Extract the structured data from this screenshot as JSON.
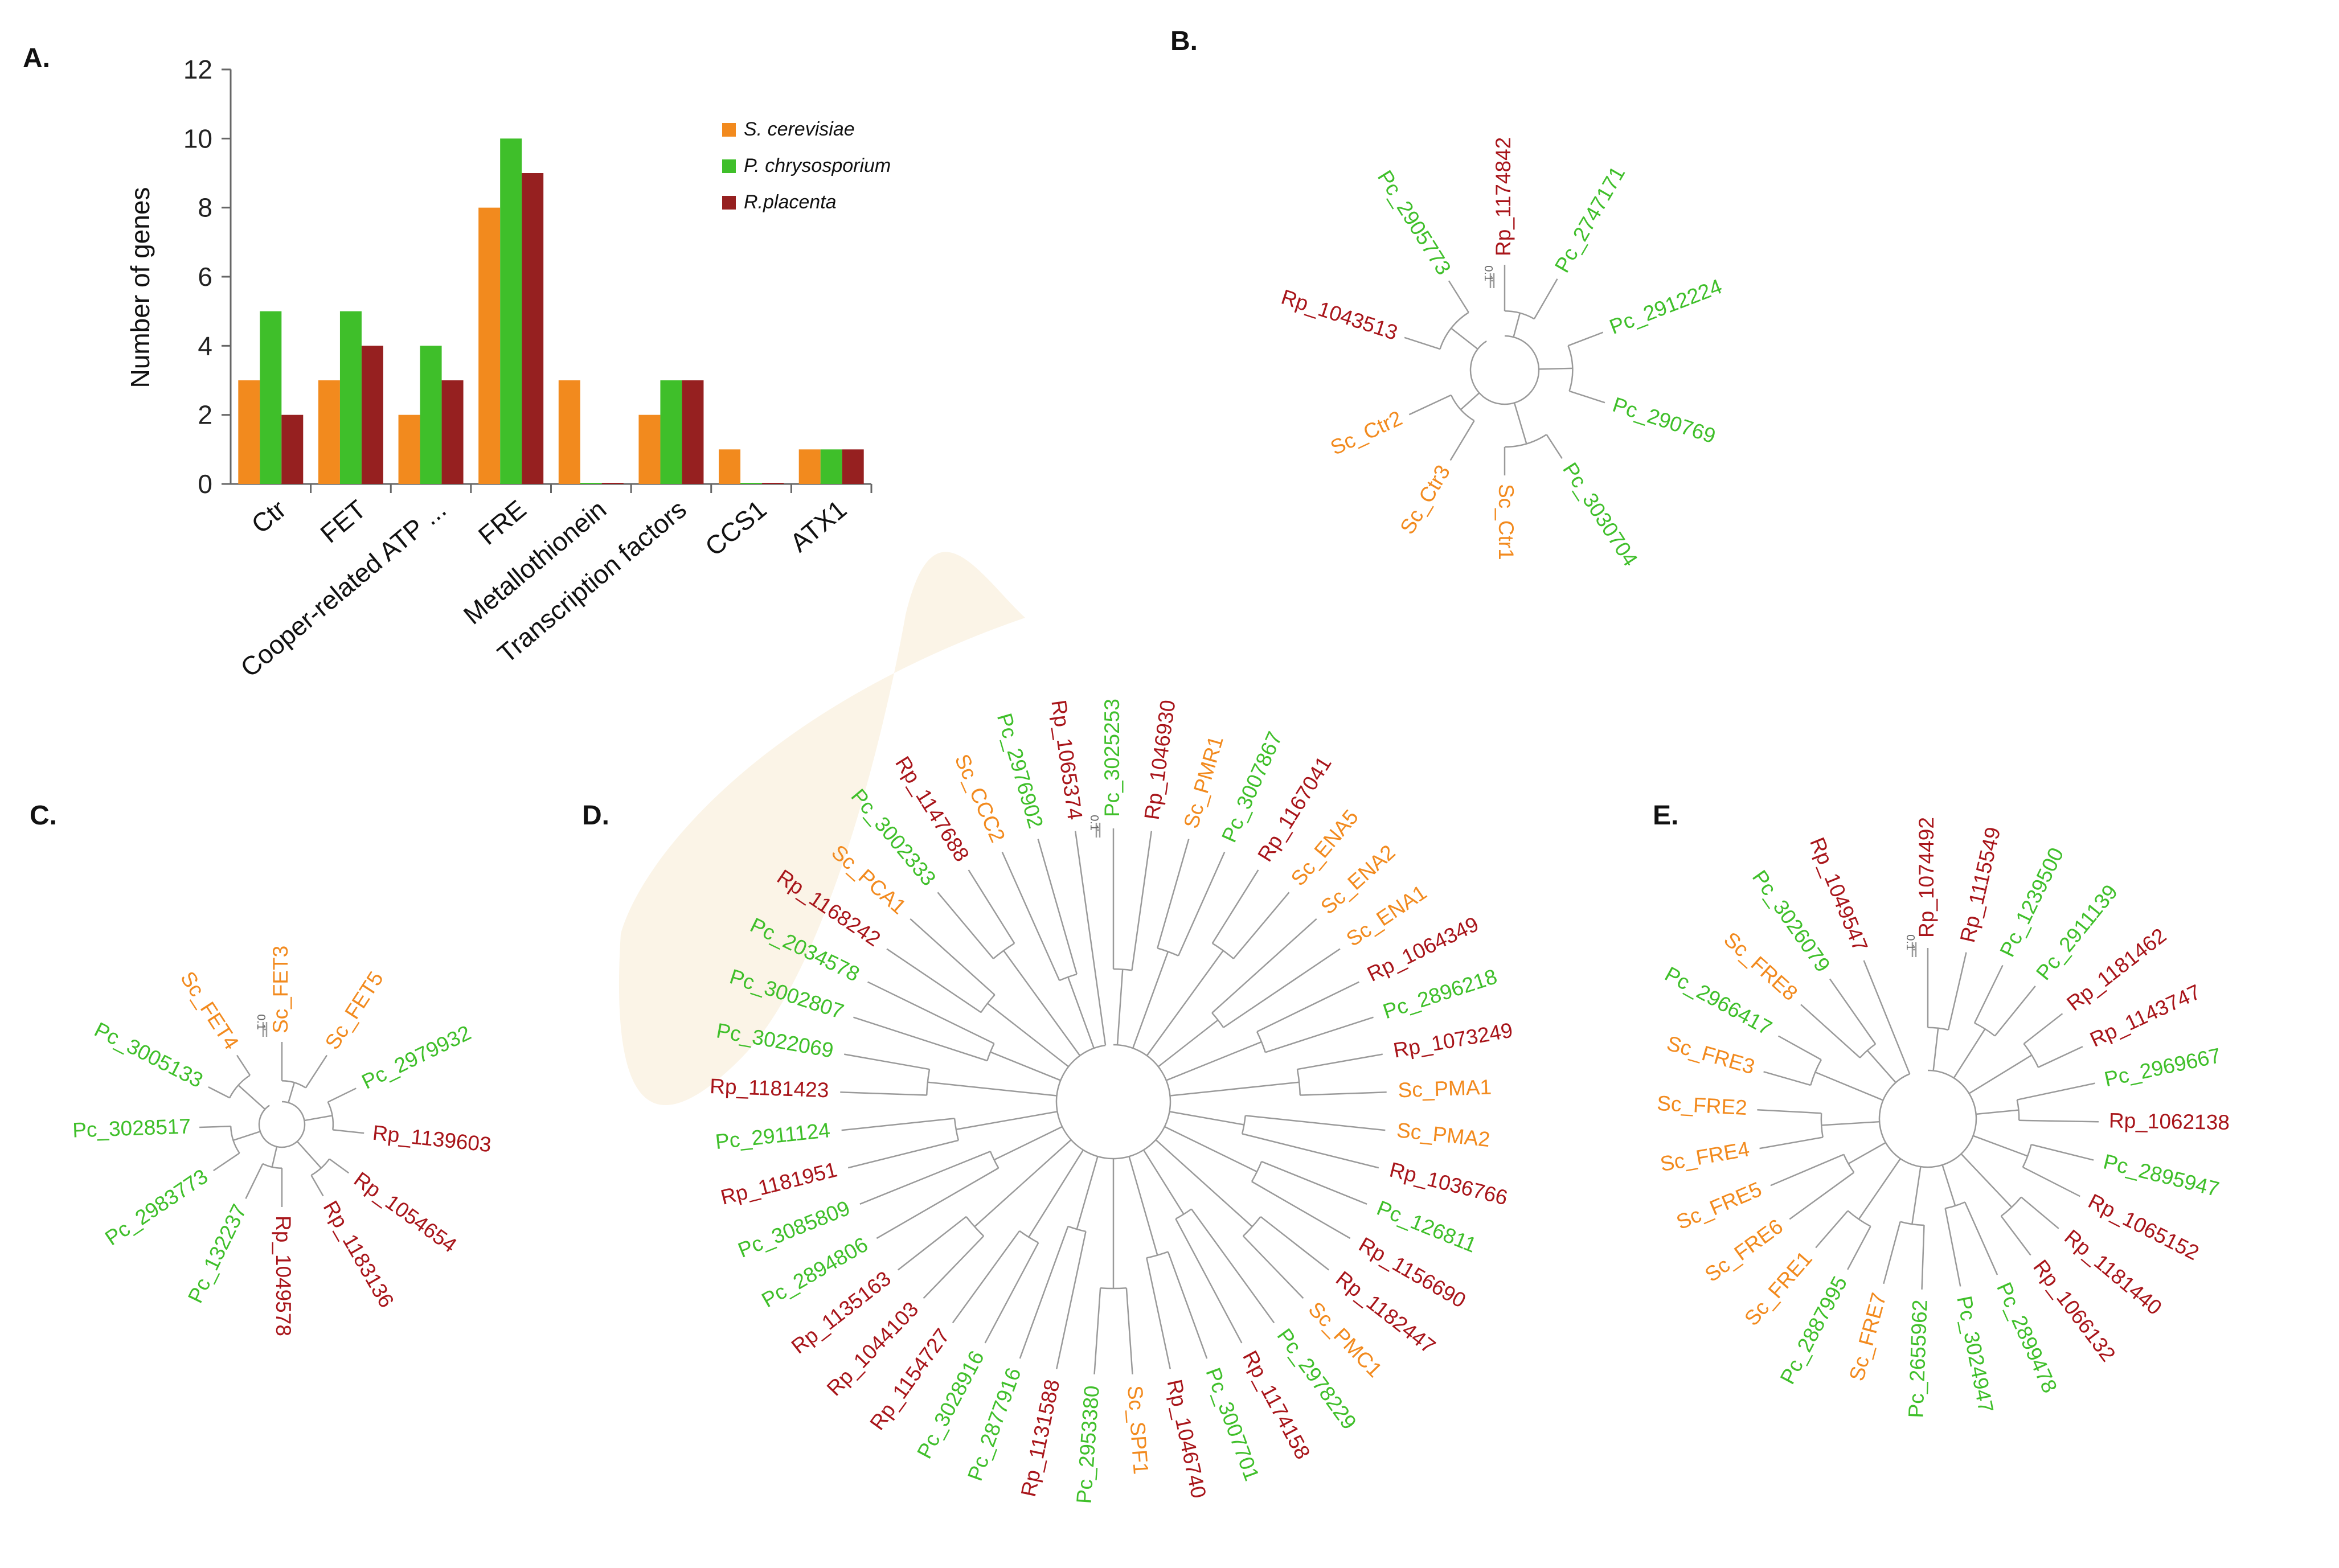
{
  "colors": {
    "sc": "#f28a1e",
    "pc": "#3fbf2a",
    "rp": "#a8151a",
    "shade": "#fbf4e7",
    "axis": "#666666"
  },
  "panels": {
    "a": "A.",
    "b": "B.",
    "c": "C.",
    "d": "D.",
    "e": "E."
  },
  "chart_data": {
    "type": "bar",
    "categories": [
      "Ctr",
      "FET",
      "Cooper-related ATP ...",
      "FRE",
      "Metallothionein",
      "Transcription factors",
      "CCS1",
      "ATX1"
    ],
    "series": [
      {
        "name": "S. cerevisiae",
        "color": "#f28a1e",
        "values": [
          3,
          3,
          2,
          8,
          3,
          2,
          1,
          1
        ]
      },
      {
        "name": "P. chrysosporium",
        "color": "#3fbf2a",
        "values": [
          5,
          5,
          4,
          10,
          0,
          3,
          0,
          1
        ]
      },
      {
        "name": "R.placenta",
        "color": "#962020",
        "values": [
          2,
          4,
          3,
          9,
          0,
          3,
          0,
          1
        ]
      }
    ],
    "ylabel": "Number of genes",
    "xlabel": "",
    "ylim": [
      0,
      12
    ],
    "yticks": [
      0,
      2,
      4,
      6,
      8,
      10,
      12
    ],
    "legend": "top-right"
  },
  "trees": {
    "b": {
      "scale_label": "0.1",
      "leaves": [
        {
          "label": "Rp_1174842",
          "sp": "rp",
          "angle": -90
        },
        {
          "label": "Pc_2747171",
          "sp": "pc",
          "angle": -60
        },
        {
          "label": "Pc_2912224",
          "sp": "pc",
          "angle": -21
        },
        {
          "label": "Pc_290769",
          "sp": "pc",
          "angle": 18
        },
        {
          "label": "Pc_3030704",
          "sp": "pc",
          "angle": 57
        },
        {
          "label": "Sc_Ctr1",
          "sp": "sc",
          "angle": 90
        },
        {
          "label": "Sc_Ctr3",
          "sp": "sc",
          "angle": 121
        },
        {
          "label": "Sc_Ctr2",
          "sp": "sc",
          "angle": 155
        },
        {
          "label": "Rp_1043513",
          "sp": "rp",
          "angle": 198
        },
        {
          "label": "Pc_2905773",
          "sp": "pc",
          "angle": 238
        }
      ]
    },
    "c": {
      "scale_label": "0.1",
      "leaves": [
        {
          "label": "Sc_FET3",
          "sp": "sc",
          "angle": -90
        },
        {
          "label": "Sc_FET5",
          "sp": "sc",
          "angle": -57
        },
        {
          "label": "Pc_2979932",
          "sp": "pc",
          "angle": -26
        },
        {
          "label": "Rp_1139603",
          "sp": "rp",
          "angle": 6
        },
        {
          "label": "Rp_1054654",
          "sp": "rp",
          "angle": 36
        },
        {
          "label": "Rp_1183136",
          "sp": "rp",
          "angle": 60
        },
        {
          "label": "Rp_1049578",
          "sp": "rp",
          "angle": 90
        },
        {
          "label": "Pc_132237",
          "sp": "pc",
          "angle": 116
        },
        {
          "label": "Pc_2983773",
          "sp": "pc",
          "angle": 146
        },
        {
          "label": "Pc_3028517",
          "sp": "pc",
          "angle": 178
        },
        {
          "label": "Pc_3005133",
          "sp": "pc",
          "angle": 207
        },
        {
          "label": "Sc_FET4",
          "sp": "sc",
          "angle": 237
        }
      ]
    },
    "d": {
      "scale_label": "0.1",
      "leaves": [
        {
          "label": "Pc_3025253",
          "sp": "pc",
          "angle": -90
        },
        {
          "label": "Rp_1046930",
          "sp": "rp",
          "angle": -82
        },
        {
          "label": "Sc_PMR1",
          "sp": "sc",
          "angle": -74
        },
        {
          "label": "Pc_3007867",
          "sp": "pc",
          "angle": -66
        },
        {
          "label": "Rp_1167041",
          "sp": "rp",
          "angle": -58
        },
        {
          "label": "Sc_ENA5",
          "sp": "sc",
          "angle": -50
        },
        {
          "label": "Sc_ENA2",
          "sp": "sc",
          "angle": -42
        },
        {
          "label": "Sc_ENA1",
          "sp": "sc",
          "angle": -34
        },
        {
          "label": "Rp_1064349",
          "sp": "rp",
          "angle": -26
        },
        {
          "label": "Pc_2896218",
          "sp": "pc",
          "angle": -18
        },
        {
          "label": "Rp_1073249",
          "sp": "rp",
          "angle": -10
        },
        {
          "label": "Sc_PMA1",
          "sp": "sc",
          "angle": -2
        },
        {
          "label": "Sc_PMA2",
          "sp": "sc",
          "angle": 6
        },
        {
          "label": "Rp_1036766",
          "sp": "rp",
          "angle": 14
        },
        {
          "label": "Pc_126811",
          "sp": "pc",
          "angle": 22
        },
        {
          "label": "Rp_1156690",
          "sp": "rp",
          "angle": 30
        },
        {
          "label": "Rp_1182447",
          "sp": "rp",
          "angle": 38
        },
        {
          "label": "Sc_PMC1",
          "sp": "sc",
          "angle": 46
        },
        {
          "label": "Pc_2978229",
          "sp": "pc",
          "angle": 54
        },
        {
          "label": "Rp_1174158",
          "sp": "rp",
          "angle": 62
        },
        {
          "label": "Pc_3007701",
          "sp": "pc",
          "angle": 70
        },
        {
          "label": "Rp_1046740",
          "sp": "rp",
          "angle": 78
        },
        {
          "label": "Sc_SPF1",
          "sp": "sc",
          "angle": 86
        },
        {
          "label": "Pc_2953380",
          "sp": "pc",
          "angle": 94
        },
        {
          "label": "Rp_1131588",
          "sp": "rp",
          "angle": 102
        },
        {
          "label": "Pc_2877916",
          "sp": "pc",
          "angle": 110
        },
        {
          "label": "Pc_3028916",
          "sp": "pc",
          "angle": 118
        },
        {
          "label": "Rp_1154727",
          "sp": "rp",
          "angle": 126
        },
        {
          "label": "Rp_1044103",
          "sp": "rp",
          "angle": 134
        },
        {
          "label": "Rp_1135163",
          "sp": "rp",
          "angle": 142
        },
        {
          "label": "Pc_2894806",
          "sp": "pc",
          "angle": 150
        },
        {
          "label": "Pc_3085809",
          "sp": "pc",
          "angle": 158
        },
        {
          "label": "Rp_1181951",
          "sp": "rp",
          "angle": 166
        },
        {
          "label": "Pc_2911124",
          "sp": "pc",
          "angle": 174
        },
        {
          "label": "Rp_1181423",
          "sp": "rp",
          "angle": 182
        },
        {
          "label": "Pc_3022069",
          "sp": "pc",
          "angle": 190
        },
        {
          "label": "Pc_3002807",
          "sp": "pc",
          "angle": 198
        },
        {
          "label": "Pc_2034578",
          "sp": "pc",
          "angle": 206
        },
        {
          "label": "Rp_1168242",
          "sp": "rp",
          "angle": 214
        },
        {
          "label": "Sc_PCA1",
          "sp": "sc",
          "angle": 222
        },
        {
          "label": "Pc_3002333",
          "sp": "pc",
          "angle": 230
        },
        {
          "label": "Rp_1147688",
          "sp": "rp",
          "angle": 238
        },
        {
          "label": "Sc_CCC2",
          "sp": "sc",
          "angle": 246
        },
        {
          "label": "Pc_2976902",
          "sp": "pc",
          "angle": 254
        },
        {
          "label": "Rp_1065374",
          "sp": "rp",
          "angle": 262
        }
      ]
    },
    "e": {
      "scale_label": "0.1",
      "leaves": [
        {
          "label": "Rp_1074492",
          "sp": "rp",
          "angle": -90
        },
        {
          "label": "Rp_1115549",
          "sp": "rp",
          "angle": -77
        },
        {
          "label": "Pc_1239500",
          "sp": "pc",
          "angle": -64
        },
        {
          "label": "Pc_2911139",
          "sp": "pc",
          "angle": -51
        },
        {
          "label": "Rp_1181462",
          "sp": "rp",
          "angle": -38
        },
        {
          "label": "Rp_1143747",
          "sp": "rp",
          "angle": -25
        },
        {
          "label": "Pc_2969667",
          "sp": "pc",
          "angle": -12
        },
        {
          "label": "Rp_1062138",
          "sp": "rp",
          "angle": 1
        },
        {
          "label": "Pc_2895947",
          "sp": "pc",
          "angle": 14
        },
        {
          "label": "Rp_1065152",
          "sp": "rp",
          "angle": 27
        },
        {
          "label": "Rp_1181440",
          "sp": "rp",
          "angle": 40
        },
        {
          "label": "Rp_1066132",
          "sp": "rp",
          "angle": 53
        },
        {
          "label": "Pc_2899478",
          "sp": "pc",
          "angle": 66
        },
        {
          "label": "Pc_3024947",
          "sp": "pc",
          "angle": 79
        },
        {
          "label": "Pc_2655962",
          "sp": "pc",
          "angle": 92
        },
        {
          "label": "Sc_FRE7",
          "sp": "sc",
          "angle": 105
        },
        {
          "label": "Pc_2887995",
          "sp": "pc",
          "angle": 118
        },
        {
          "label": "Sc_FRE1",
          "sp": "sc",
          "angle": 131
        },
        {
          "label": "Sc_FRE6",
          "sp": "sc",
          "angle": 144
        },
        {
          "label": "Sc_FRE5",
          "sp": "sc",
          "angle": 157
        },
        {
          "label": "Sc_FRE4",
          "sp": "sc",
          "angle": 170
        },
        {
          "label": "Sc_FRE2",
          "sp": "sc",
          "angle": 183
        },
        {
          "label": "Sc_FRE3",
          "sp": "sc",
          "angle": 196
        },
        {
          "label": "Pc_2966417",
          "sp": "pc",
          "angle": 209
        },
        {
          "label": "Sc_FRE8",
          "sp": "sc",
          "angle": 222
        },
        {
          "label": "Pc_3026079",
          "sp": "pc",
          "angle": 235
        },
        {
          "label": "Rp_1049547",
          "sp": "rp",
          "angle": 248
        }
      ]
    }
  }
}
